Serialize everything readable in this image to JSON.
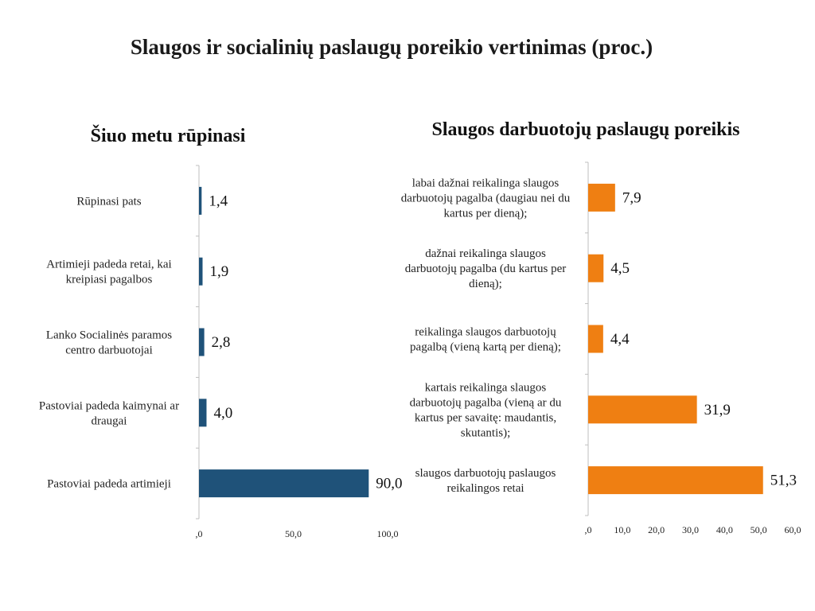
{
  "page": {
    "title": "Slaugos ir socialinių paslaugų poreikio vertinimas (proc.)"
  },
  "colors": {
    "left_bar": "#1f5279",
    "right_bar": "#ef7f12"
  },
  "chart_data": [
    {
      "type": "bar",
      "orientation": "horizontal",
      "title": "Šiuo metu rūpinasi",
      "categories": [
        "Rūpinasi pats",
        "Artimieji padeda retai, kai\nkreipiasi pagalbos",
        "Lanko Socialinės paramos\ncentro darbuotojai",
        "Pastoviai padeda kaimynai ar\ndraugai",
        "Pastoviai padeda artimieji"
      ],
      "values": [
        1.4,
        1.9,
        2.8,
        4.0,
        90.0
      ],
      "value_labels": [
        "1,4",
        "1,9",
        "2,8",
        "4,0",
        "90,0"
      ],
      "xlim": [
        0,
        100
      ],
      "ticks": [
        0,
        50,
        100
      ],
      "tick_labels": [
        ",0",
        "50,0",
        "100,0"
      ],
      "color": "#1f5279",
      "grid": false
    },
    {
      "type": "bar",
      "orientation": "horizontal",
      "title": "Slaugos darbuotojų paslaugų poreikis",
      "categories": [
        "labai dažnai reikalinga slaugos\ndarbuotojų pagalba (daugiau nei du\nkartus per dieną);",
        "dažnai reikalinga slaugos\ndarbuotojų pagalba (du kartus per\ndieną);",
        "reikalinga slaugos darbuotojų\npagalbą (vieną kartą per dieną);",
        "kartais reikalinga slaugos\ndarbuotojų pagalba (vieną ar du\nkartus per savaitę: maudantis,\nskutantis);",
        "slaugos darbuotojų paslaugos\nreikalingos retai"
      ],
      "values": [
        7.9,
        4.5,
        4.4,
        31.9,
        51.3
      ],
      "value_labels": [
        "7,9",
        "4,5",
        "4,4",
        "31,9",
        "51,3"
      ],
      "xlim": [
        0,
        60
      ],
      "ticks": [
        0,
        10,
        20,
        30,
        40,
        50,
        60
      ],
      "tick_labels": [
        ",0",
        "10,0",
        "20,0",
        "30,0",
        "40,0",
        "50,0",
        "60,0"
      ],
      "color": "#ef7f12",
      "grid": false
    }
  ]
}
